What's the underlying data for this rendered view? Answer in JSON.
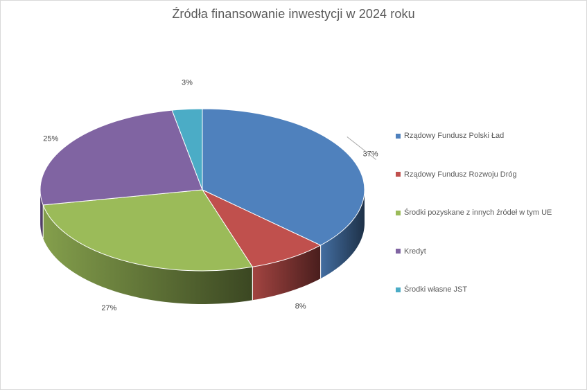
{
  "chart_data": {
    "type": "pie",
    "title": "Źródła finansowanie inwestycji w 2024 roku",
    "categories": [
      "Rządowy Fundusz Polski Ład",
      "Rządowy Fundusz Rozwoju Dróg",
      "Środki pozyskane z innych źródeł w tym UE",
      "Kredyt",
      "Środki własne JST"
    ],
    "values": [
      37,
      8,
      27,
      25,
      3
    ],
    "data_labels": [
      "37%",
      "8%",
      "27%",
      "25%",
      "3%"
    ],
    "colors": [
      "#4f81bd",
      "#c0504d",
      "#9bbb59",
      "#8064a2",
      "#4bacc6"
    ],
    "legend_position": "right",
    "style": "3d"
  }
}
